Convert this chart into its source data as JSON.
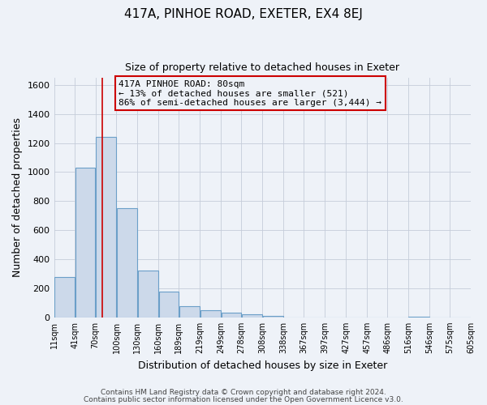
{
  "title": "417A, PINHOE ROAD, EXETER, EX4 8EJ",
  "subtitle": "Size of property relative to detached houses in Exeter",
  "xlabel": "Distribution of detached houses by size in Exeter",
  "ylabel": "Number of detached properties",
  "bin_edges": [
    11,
    41,
    70,
    100,
    130,
    160,
    189,
    219,
    249,
    278,
    308,
    338,
    367,
    397,
    427,
    457,
    486,
    516,
    546,
    575,
    605
  ],
  "bin_counts": [
    280,
    1030,
    1240,
    750,
    325,
    175,
    75,
    50,
    35,
    20,
    10,
    0,
    0,
    0,
    0,
    0,
    0,
    5,
    0,
    0
  ],
  "bar_facecolor": "#ccd9ea",
  "bar_edgecolor": "#6b9fc8",
  "vline_x": 80,
  "vline_color": "#cc0000",
  "annotation_box_text": "417A PINHOE ROAD: 80sqm\n← 13% of detached houses are smaller (521)\n86% of semi-detached houses are larger (3,444) →",
  "ylim": [
    0,
    1650
  ],
  "yticks": [
    0,
    200,
    400,
    600,
    800,
    1000,
    1200,
    1400,
    1600
  ],
  "footer_line1": "Contains HM Land Registry data © Crown copyright and database right 2024.",
  "footer_line2": "Contains public sector information licensed under the Open Government Licence v3.0.",
  "background_color": "#eef2f8",
  "grid_color": "#c5ccda",
  "tick_labels": [
    "11sqm",
    "41sqm",
    "70sqm",
    "100sqm",
    "130sqm",
    "160sqm",
    "189sqm",
    "219sqm",
    "249sqm",
    "278sqm",
    "308sqm",
    "338sqm",
    "367sqm",
    "397sqm",
    "427sqm",
    "457sqm",
    "486sqm",
    "516sqm",
    "546sqm",
    "575sqm",
    "605sqm"
  ]
}
